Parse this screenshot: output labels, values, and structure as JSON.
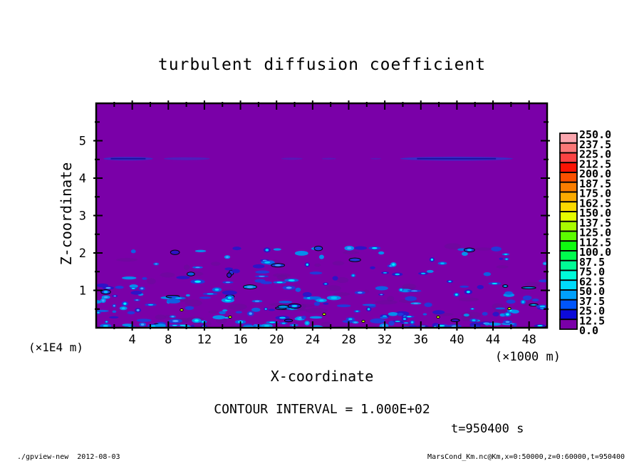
{
  "footer": {
    "left": "./gpview-new  2012-08-03",
    "right": "MarsCond_Km.nc@Km,x=0:50000,z=0:60000,t=950400"
  },
  "chart_data": {
    "type": "heatmap",
    "title": "turbulent diffusion coefficient",
    "xlabel": "X-coordinate",
    "ylabel": "Z-coordinate",
    "x_unit_label": "(×1000 m)",
    "z_unit_label": "(×1E4 m)",
    "xlim": [
      0,
      50
    ],
    "zlim": [
      0,
      6
    ],
    "x_ticks": [
      4,
      8,
      12,
      16,
      20,
      24,
      28,
      32,
      36,
      40,
      44,
      48
    ],
    "x_minor_step": 2,
    "z_ticks": [
      1,
      2,
      3,
      4,
      5
    ],
    "z_minor_step": 0.5,
    "contour_interval": "CONTOUR INTERVAL = 1.000E+02",
    "time_label": "t=950400 s",
    "colorbar": {
      "levels": [
        250.0,
        237.5,
        225.0,
        212.5,
        200.0,
        187.5,
        175.0,
        162.5,
        150.0,
        137.5,
        125.0,
        112.5,
        100.0,
        87.5,
        75.0,
        62.5,
        50.0,
        37.5,
        25.0,
        12.5,
        0.0
      ],
      "colors_top_to_bottom": [
        "#faa6ae",
        "#fa7878",
        "#fb4343",
        "#fb1404",
        "#fb5000",
        "#fb7d00",
        "#fbaa00",
        "#fbd900",
        "#e4fb00",
        "#a8fb00",
        "#5cfb00",
        "#0ffb10",
        "#00fb4e",
        "#00fb96",
        "#00fbd9",
        "#00dcfb",
        "#00a0fb",
        "#0055fb",
        "#0d0bd9",
        "#7a00a8"
      ]
    },
    "field": {
      "background": "#7a00a8",
      "streak_z": 4.52,
      "streak_color": "#3a2cc8",
      "streak_core_color": "#19119e",
      "streaks": [
        [
          0.8,
          6.3,
          2.6,
          0.9,
          1
        ],
        [
          7.5,
          12.6,
          2.0,
          0.65,
          0
        ],
        [
          20.5,
          22.9,
          1.5,
          0.5,
          0
        ],
        [
          25.0,
          26.6,
          1.2,
          0.5,
          0
        ],
        [
          30.4,
          31.6,
          1.0,
          0.5,
          0
        ],
        [
          33.7,
          46.2,
          2.8,
          0.95,
          1
        ]
      ],
      "speckles": {
        "seed": 1337,
        "count": 250,
        "smudges": 60,
        "smudge_color": "#640e96",
        "colors": [
          "#2a14c8",
          "#1e3cdc",
          "#0a64e6",
          "#0096f0"
        ],
        "core_colors": [
          "#00c8fa",
          "#00f0ff",
          "#46a0ff"
        ],
        "hot_color": "#c8fb00",
        "hot_dots": [
          [
            120,
            290
          ],
          [
            188,
            300
          ],
          [
            320,
            296
          ],
          [
            375,
            306
          ],
          [
            480,
            300
          ],
          [
            580,
            288
          ]
        ]
      }
    }
  }
}
